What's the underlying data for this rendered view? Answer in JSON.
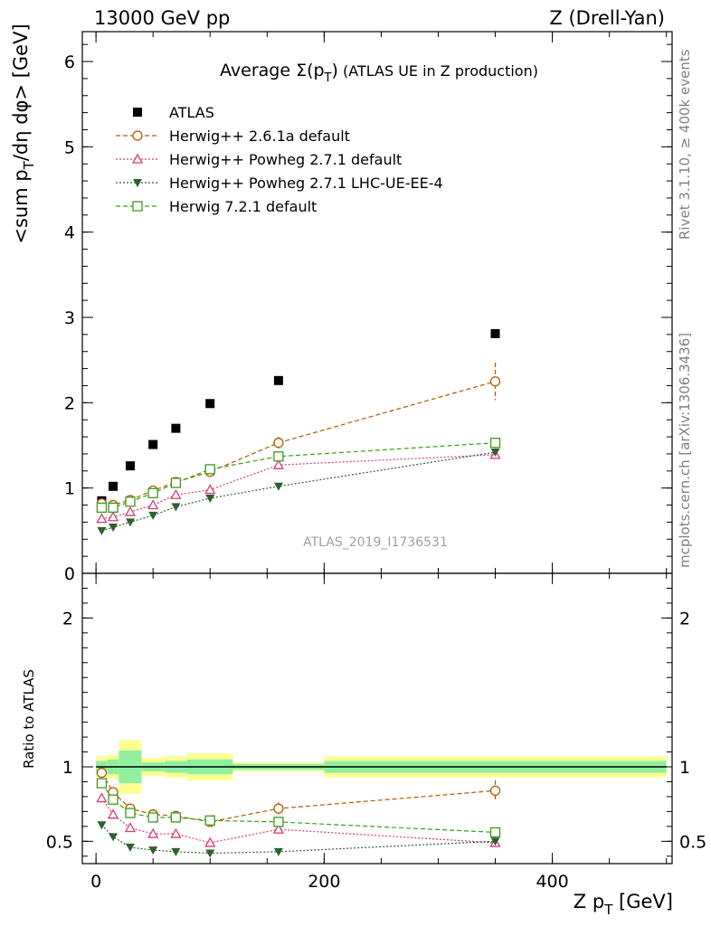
{
  "header": {
    "left": "13000 GeV pp",
    "right": "Z (Drell-Yan)"
  },
  "side_text": {
    "rivet": "Rivet 3.1.10, ≥ 400k events",
    "mcplots": "mcplots.cern.ch [arXiv:1306.3436]"
  },
  "chart_data": [
    {
      "type": "scatter",
      "panel": "main",
      "title_prefix": "Average ",
      "title_symbol": "Σ(p",
      "title_sub": "T",
      "title_close": ")",
      "title_suffix": " (ATLAS UE in Z production)",
      "ylabel": "<sum p_T/dη dφ> [GeV]",
      "ylabel_parts": {
        "a": "<sum p",
        "sub": "T",
        "b": "/dη dφ> [GeV]"
      },
      "watermark": "ATLAS_2019_I1736531",
      "xlim": [
        -12,
        505
      ],
      "ylim": [
        0,
        6.35
      ],
      "yticks": [
        0,
        1,
        2,
        3,
        4,
        5,
        6
      ],
      "ytick_labels": [
        "0",
        "1",
        "2",
        "3",
        "4",
        "5",
        "6"
      ],
      "x": [
        5,
        15,
        30,
        50,
        70,
        100,
        160,
        350
      ],
      "xerr": [
        [
          5,
          5
        ],
        [
          5,
          5
        ],
        [
          10,
          10
        ],
        [
          10,
          10
        ],
        [
          10,
          10
        ],
        [
          20,
          20
        ],
        [
          40,
          40
        ],
        [
          150,
          150
        ]
      ],
      "legend_position": "top-left",
      "series": [
        {
          "name": "ATLAS",
          "color": "#000000",
          "marker": "square-filled",
          "line": "none",
          "values": [
            0.85,
            1.02,
            1.26,
            1.51,
            1.7,
            1.99,
            2.26,
            2.81
          ]
        },
        {
          "name": "Herwig++ 2.6.1a default",
          "color": "#b05a00",
          "marker": "circle-open",
          "line": "dashed",
          "values": [
            0.82,
            0.8,
            0.86,
            0.97,
            1.07,
            1.19,
            1.53,
            2.25
          ],
          "err": [
            0,
            0,
            0,
            0,
            0,
            0,
            0.07,
            0.22
          ]
        },
        {
          "name": "Herwig++ Powheg 2.7.1 default",
          "color": "#d63c78",
          "marker": "triangle-open",
          "line": "dotted",
          "values": [
            0.64,
            0.66,
            0.72,
            0.8,
            0.92,
            0.98,
            1.27,
            1.39
          ]
        },
        {
          "name": "Herwig++ Powheg 2.7.1 LHC-UE-EE-4",
          "color": "#2f5f2f",
          "marker": "triangle-down-filled",
          "line": "dotted",
          "values": [
            0.5,
            0.54,
            0.6,
            0.68,
            0.78,
            0.88,
            1.02,
            1.42
          ]
        },
        {
          "name": "Herwig 7.2.1 default",
          "color": "#3a9a1a",
          "marker": "square-open",
          "line": "dashed",
          "values": [
            0.77,
            0.77,
            0.84,
            0.94,
            1.06,
            1.22,
            1.37,
            1.53
          ],
          "err": [
            0,
            0,
            0,
            0,
            0,
            0,
            0.03,
            0.06
          ]
        }
      ]
    },
    {
      "type": "scatter",
      "panel": "ratio",
      "ylabel": "Ratio to ATLAS",
      "xlabel": "Z p_T [GeV]",
      "xlabel_parts": {
        "a": "Z p",
        "sub": "T",
        "b": " [GeV]"
      },
      "xlim": [
        -12,
        505
      ],
      "ylim": [
        0.35,
        2.3
      ],
      "xticks": [
        0,
        200,
        400
      ],
      "xtick_labels": [
        "0",
        "200",
        "400"
      ],
      "yticks": [
        0.5,
        1,
        2
      ],
      "ytick_labels": [
        "0.5",
        "1",
        "2"
      ],
      "reference_line": 1,
      "bands": {
        "x_edges": [
          0,
          10,
          20,
          40,
          60,
          80,
          120,
          200,
          500
        ],
        "inner_halfwidth": [
          0.04,
          0.05,
          0.11,
          0.03,
          0.04,
          0.05,
          0.02,
          0.04,
          0.03
        ],
        "outer_halfwidth": [
          0.07,
          0.08,
          0.18,
          0.06,
          0.07,
          0.09,
          0.03,
          0.07,
          0.05
        ],
        "inner_color": "#90f0a0",
        "outer_color": "#ffff90"
      },
      "series": [
        {
          "name": "Herwig++ 2.6.1a default",
          "color": "#b05a00",
          "values": [
            0.96,
            0.83,
            0.72,
            0.68,
            0.67,
            0.63,
            0.72,
            0.84
          ],
          "err": [
            0,
            0,
            0,
            0,
            0,
            0,
            0.04,
            0.07
          ]
        },
        {
          "name": "Herwig++ Powheg 2.7.1 default",
          "color": "#d63c78",
          "values": [
            0.79,
            0.68,
            0.59,
            0.55,
            0.55,
            0.49,
            0.58,
            0.49
          ]
        },
        {
          "name": "Herwig++ Powheg 2.7.1 LHC-UE-EE-4",
          "color": "#2f5f2f",
          "values": [
            0.61,
            0.53,
            0.46,
            0.44,
            0.43,
            0.42,
            0.43,
            0.5
          ]
        },
        {
          "name": "Herwig 7.2.1 default",
          "color": "#3a9a1a",
          "values": [
            0.89,
            0.78,
            0.69,
            0.66,
            0.66,
            0.64,
            0.63,
            0.56
          ],
          "err": [
            0,
            0,
            0,
            0,
            0,
            0,
            0,
            0.03
          ]
        }
      ]
    }
  ]
}
